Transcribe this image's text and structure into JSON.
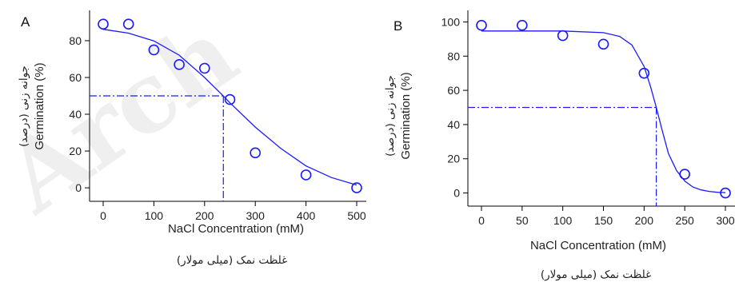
{
  "watermark": "Arch",
  "chart_data": [
    {
      "type": "scatter",
      "panel": "A",
      "xlabel": "NaCl Concentration (mM)",
      "xlabel_fa": "غلظت نمک (میلی مولار)",
      "ylabel": "Germination (%)",
      "ylabel_fa": "جوانه زنی (درصد)",
      "xlim": [
        0,
        500
      ],
      "ylim": [
        0,
        90
      ],
      "xticks": [
        0,
        100,
        200,
        300,
        400,
        500
      ],
      "yticks": [
        0,
        20,
        40,
        60,
        80
      ],
      "points": {
        "x": [
          0,
          50,
          100,
          150,
          200,
          250,
          300,
          400,
          500
        ],
        "y": [
          89,
          89,
          75,
          67,
          65,
          48,
          19,
          7,
          0
        ]
      },
      "fit_curve": {
        "x": [
          0,
          50,
          100,
          150,
          200,
          237,
          250,
          300,
          350,
          400,
          450,
          500
        ],
        "y": [
          86.2,
          84.1,
          79.9,
          72.1,
          60.0,
          49.9,
          46.2,
          33.0,
          21.5,
          11.9,
          5.6,
          1.5
        ]
      },
      "reference": {
        "x50": 237,
        "y": 50
      },
      "colors": {
        "marker": "#1a1aff",
        "line": "#1a1aff",
        "axis": "#000000"
      },
      "grid": false
    },
    {
      "type": "scatter",
      "panel": "B",
      "xlabel": "NaCl Concentration (mM)",
      "xlabel_fa": "غلظت نمک (میلی مولار)",
      "ylabel": "Germination (%)",
      "ylabel_fa": "جوانه زنی (درصد)",
      "xlim": [
        0,
        300
      ],
      "ylim": [
        0,
        100
      ],
      "xticks": [
        0,
        50,
        100,
        150,
        200,
        250,
        300
      ],
      "yticks": [
        0,
        20,
        40,
        60,
        80,
        100
      ],
      "points": {
        "x": [
          0,
          50,
          100,
          150,
          200,
          250,
          300
        ],
        "y": [
          98,
          98,
          92,
          87,
          70,
          11,
          0
        ]
      },
      "fit_curve": {
        "x": [
          0,
          50,
          100,
          150,
          170,
          185,
          200,
          208,
          215,
          222,
          230,
          240,
          250,
          260,
          270,
          280,
          290,
          300
        ],
        "y": [
          94.7,
          94.7,
          94.7,
          93.7,
          91.5,
          86.5,
          74.0,
          62.0,
          50.0,
          37.0,
          23.0,
          13.0,
          7.0,
          3.5,
          1.8,
          0.9,
          0.4,
          0.2
        ]
      },
      "reference": {
        "x50": 215,
        "y": 50
      },
      "colors": {
        "marker": "#1a1aff",
        "line": "#1a1aff",
        "axis": "#000000"
      },
      "grid": false
    }
  ]
}
